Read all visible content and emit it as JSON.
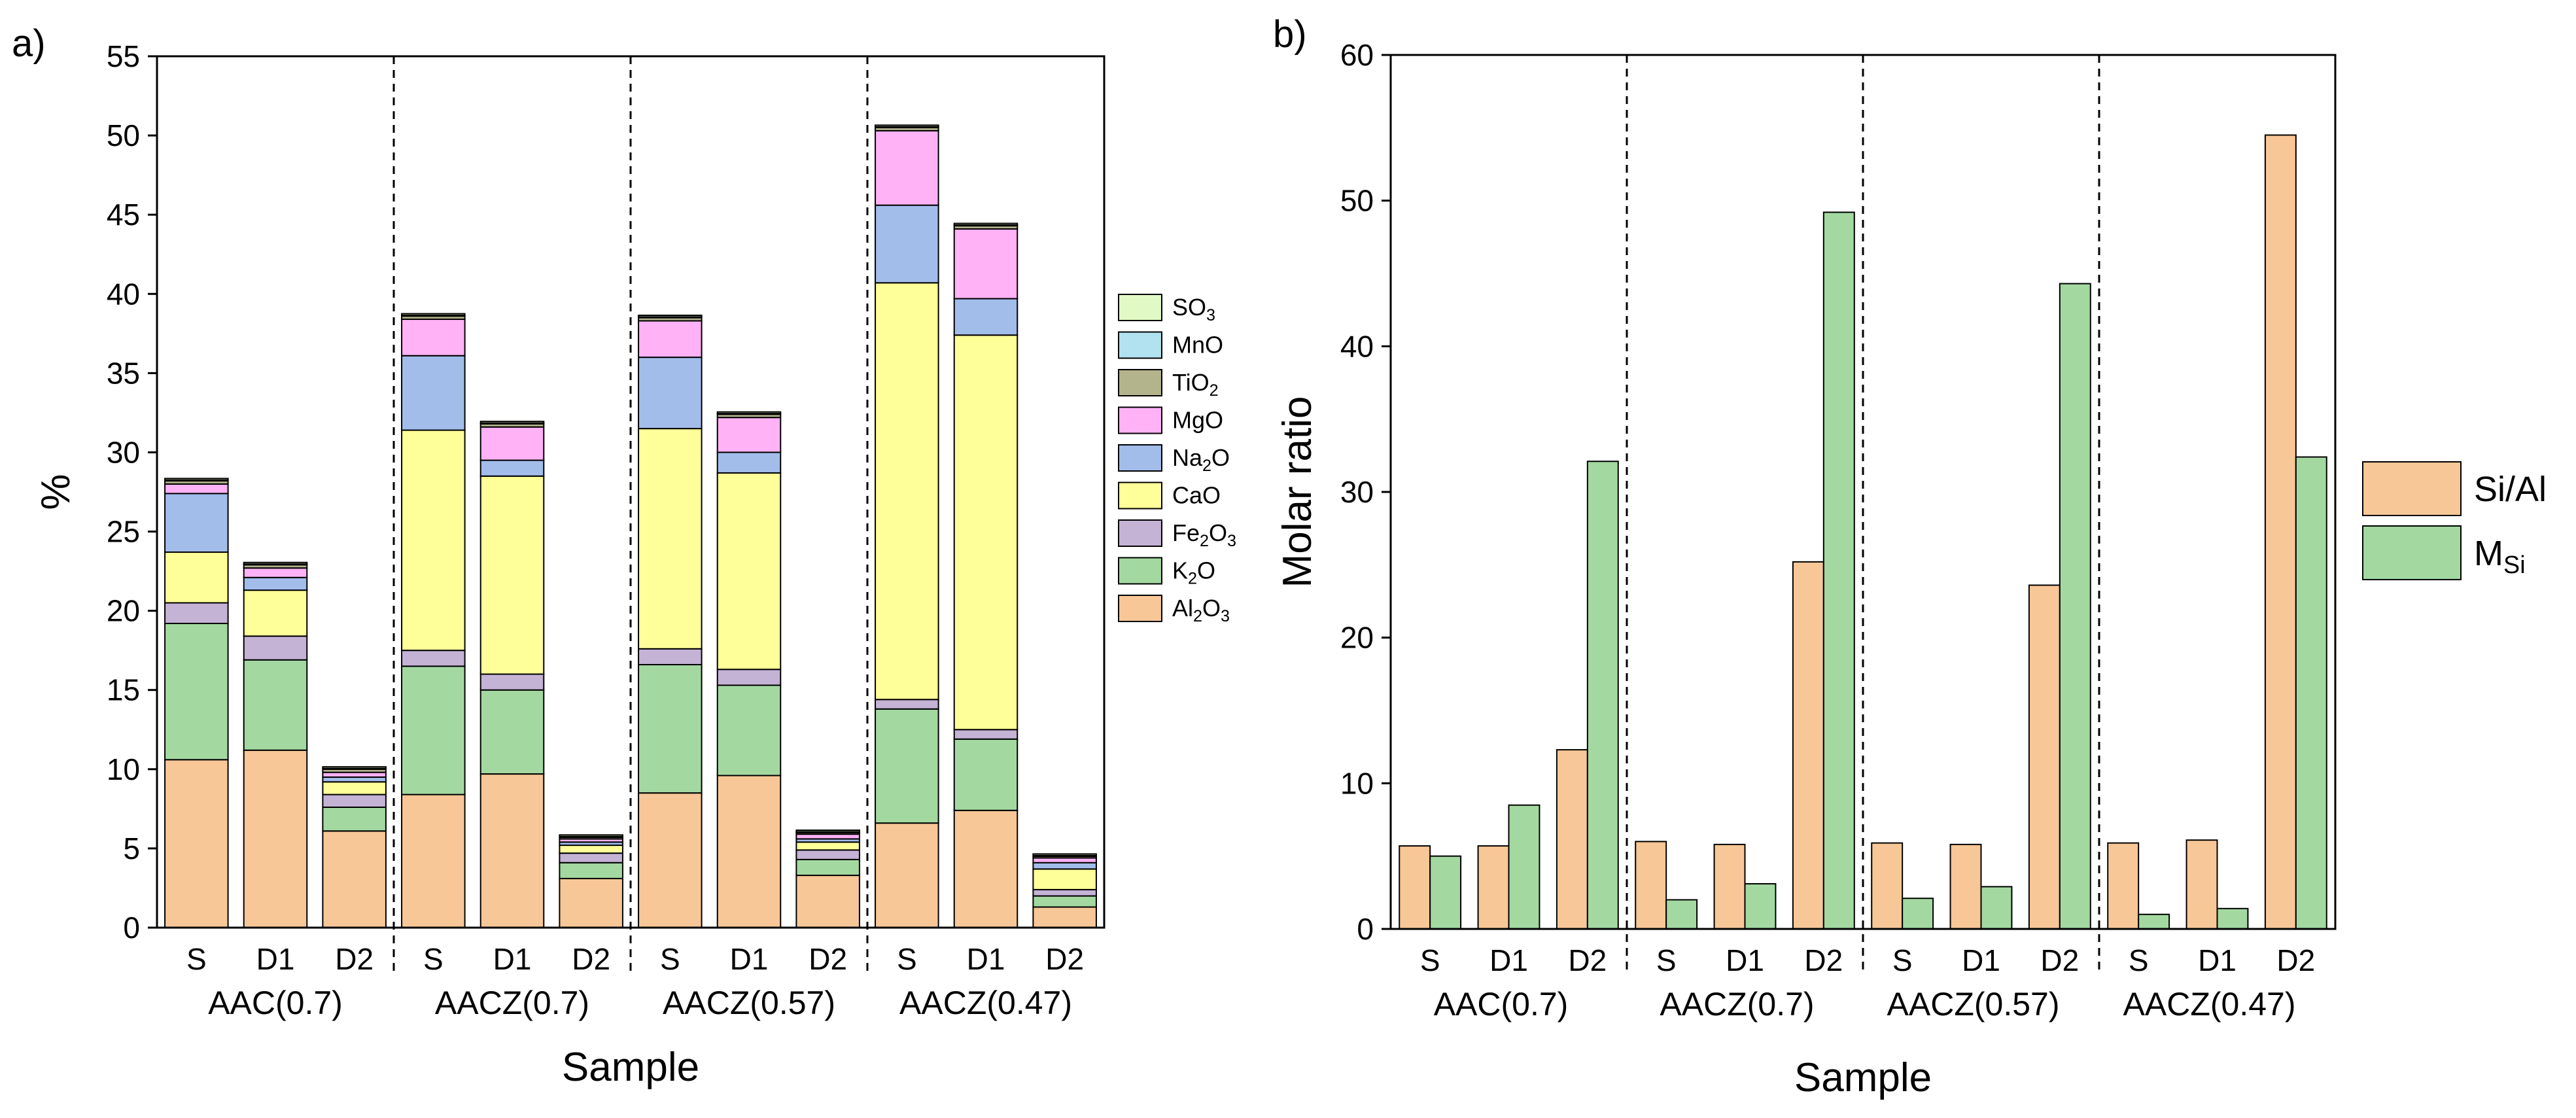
{
  "chart_data": [
    {
      "panel_label": "a)",
      "type": "bar",
      "stacked": true,
      "xlabel": "Sample",
      "ylabel": "%",
      "ylim": [
        0,
        55
      ],
      "yticks": [
        0,
        5,
        10,
        15,
        20,
        25,
        30,
        35,
        40,
        45,
        50,
        55
      ],
      "groups": [
        {
          "name": "AAC(0.7)",
          "categories": [
            "S",
            "D1",
            "D2"
          ]
        },
        {
          "name": "AACZ(0.7)",
          "categories": [
            "S",
            "D1",
            "D2"
          ]
        },
        {
          "name": "AACZ(0.57)",
          "categories": [
            "S",
            "D1",
            "D2"
          ]
        },
        {
          "name": "AACZ(0.47)",
          "categories": [
            "S",
            "D1",
            "D2"
          ]
        }
      ],
      "series": [
        {
          "name": "Al2O3",
          "base": "Al",
          "sub": "2",
          "tail": "O",
          "sub2": "3",
          "color": "#F8C797",
          "values": [
            10.6,
            11.2,
            6.1,
            8.4,
            9.7,
            3.1,
            8.5,
            9.6,
            3.3,
            6.6,
            7.4,
            1.3
          ]
        },
        {
          "name": "K2O",
          "base": "K",
          "sub": "2",
          "tail": "O",
          "sub2": "",
          "color": "#A3D9A1",
          "values": [
            8.6,
            5.7,
            1.5,
            8.1,
            5.3,
            1.0,
            8.1,
            5.7,
            1.0,
            7.2,
            4.5,
            0.7
          ]
        },
        {
          "name": "Fe2O3",
          "base": "Fe",
          "sub": "2",
          "tail": "O",
          "sub2": "3",
          "color": "#C5B3D6",
          "values": [
            1.3,
            1.5,
            0.8,
            1.0,
            1.0,
            0.6,
            1.0,
            1.0,
            0.6,
            0.6,
            0.6,
            0.4
          ]
        },
        {
          "name": "CaO",
          "base": "CaO",
          "sub": "",
          "tail": "",
          "sub2": "",
          "color": "#FFFF99",
          "values": [
            3.2,
            2.9,
            0.8,
            13.9,
            12.5,
            0.5,
            13.9,
            12.4,
            0.5,
            26.3,
            24.9,
            1.3
          ]
        },
        {
          "name": "Na2O",
          "base": "Na",
          "sub": "2",
          "tail": "O",
          "sub2": "",
          "color": "#A3BDEB",
          "values": [
            3.7,
            0.8,
            0.3,
            4.7,
            1.0,
            0.2,
            4.5,
            1.3,
            0.2,
            4.9,
            2.3,
            0.4
          ]
        },
        {
          "name": "MgO",
          "base": "MgO",
          "sub": "",
          "tail": "",
          "sub2": "",
          "color": "#FFB2F5",
          "values": [
            0.6,
            0.6,
            0.3,
            2.3,
            2.1,
            0.2,
            2.3,
            2.2,
            0.3,
            4.7,
            4.4,
            0.3
          ]
        },
        {
          "name": "TiO2",
          "base": "TiO",
          "sub": "2",
          "tail": "",
          "sub2": "",
          "color": "#B3B38C",
          "values": [
            0.2,
            0.2,
            0.2,
            0.2,
            0.2,
            0.1,
            0.2,
            0.2,
            0.1,
            0.2,
            0.2,
            0.1
          ]
        },
        {
          "name": "MnO",
          "base": "MnO",
          "sub": "",
          "tail": "",
          "sub2": "",
          "color": "#B2E2F0",
          "values": [
            0.05,
            0.05,
            0.05,
            0.05,
            0.05,
            0.05,
            0.05,
            0.05,
            0.05,
            0.05,
            0.05,
            0.05
          ]
        },
        {
          "name": "SO3",
          "base": "SO",
          "sub": "3",
          "tail": "",
          "sub2": "",
          "color": "#E1F9C4",
          "values": [
            0.1,
            0.1,
            0.1,
            0.1,
            0.1,
            0.1,
            0.1,
            0.1,
            0.1,
            0.1,
            0.1,
            0.1
          ]
        }
      ],
      "legend_position": "right"
    },
    {
      "panel_label": "b)",
      "type": "bar",
      "stacked": false,
      "xlabel": "Sample",
      "ylabel": "Molar ratio",
      "ylim": [
        0,
        60
      ],
      "yticks": [
        0,
        10,
        20,
        30,
        40,
        50,
        60
      ],
      "groups": [
        {
          "name": "AAC(0.7)",
          "categories": [
            "S",
            "D1",
            "D2"
          ]
        },
        {
          "name": "AACZ(0.7)",
          "categories": [
            "S",
            "D1",
            "D2"
          ]
        },
        {
          "name": "AACZ(0.57)",
          "categories": [
            "S",
            "D1",
            "D2"
          ]
        },
        {
          "name": "AACZ(0.47)",
          "categories": [
            "S",
            "D1",
            "D2"
          ]
        }
      ],
      "series": [
        {
          "name": "Si/Al",
          "base": "Si/Al",
          "sub": "",
          "color": "#F8C797",
          "values": [
            5.7,
            5.7,
            12.3,
            6.0,
            5.8,
            25.2,
            5.9,
            5.8,
            23.6,
            5.9,
            6.1,
            54.5
          ]
        },
        {
          "name": "MSi",
          "base": "M",
          "sub": "Si",
          "color": "#A3D9A1",
          "values": [
            5.0,
            8.5,
            32.1,
            2.0,
            3.1,
            49.2,
            2.1,
            2.9,
            44.3,
            1.0,
            1.4,
            32.4
          ]
        }
      ],
      "legend_position": "right"
    }
  ]
}
